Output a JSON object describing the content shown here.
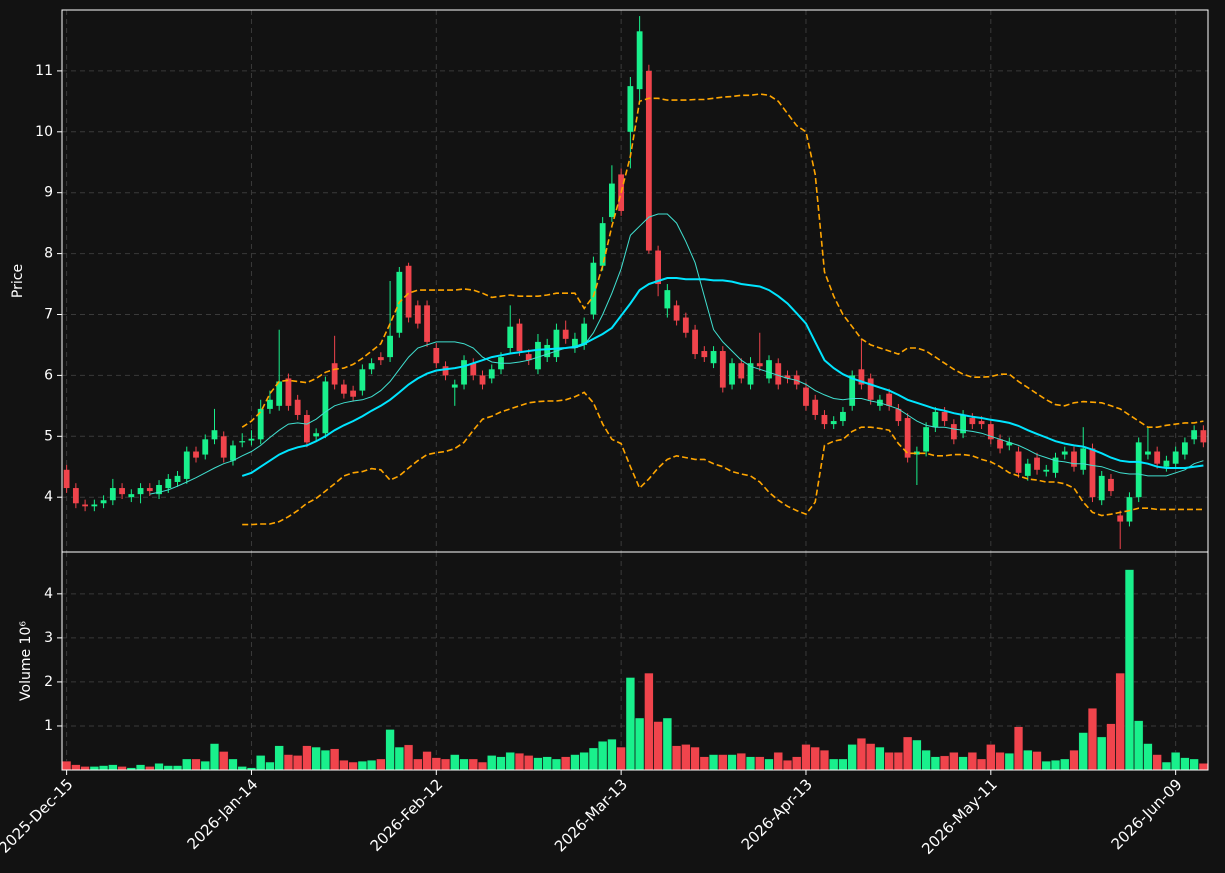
{
  "chart_data": [
    {
      "type": "candlestick",
      "ylabel": "Price",
      "ylim": [
        3.1,
        12.0
      ],
      "yticks": [
        4,
        5,
        6,
        7,
        8,
        9,
        10,
        11
      ],
      "grid": true,
      "up_color": "#19f08c",
      "down_color": "#f0444c",
      "open": [
        4.45,
        4.15,
        3.88,
        3.85,
        3.9,
        3.95,
        4.15,
        4.0,
        4.05,
        4.15,
        4.05,
        4.15,
        4.25,
        4.3,
        4.75,
        4.7,
        4.95,
        5.0,
        4.6,
        4.9,
        4.93,
        4.95,
        5.45,
        5.5,
        5.95,
        5.6,
        5.35,
        5.0,
        5.05,
        6.2,
        5.85,
        5.75,
        5.75,
        6.1,
        6.3,
        6.3,
        6.7,
        7.8,
        7.15,
        7.15,
        6.45,
        6.15,
        5.8,
        5.85,
        6.2,
        6.0,
        5.95,
        6.1,
        6.45,
        6.85,
        6.35,
        6.1,
        6.3,
        6.3,
        6.75,
        6.45,
        6.5,
        7.0,
        7.8,
        8.6,
        9.3,
        10.0,
        10.7,
        11.0,
        8.05,
        7.1,
        7.15,
        6.95,
        6.75,
        6.4,
        6.2,
        6.4,
        5.85,
        6.2,
        5.85,
        6.2,
        5.95,
        6.2,
        6.0,
        6.0,
        5.8,
        5.6,
        5.35,
        5.2,
        5.25,
        5.5,
        6.1,
        5.95,
        5.5,
        5.7,
        5.45,
        5.3,
        4.7,
        4.75,
        5.15,
        5.4,
        5.2,
        5.05,
        5.3,
        5.25,
        5.2,
        4.95,
        4.85,
        4.75,
        4.35,
        4.65,
        4.42,
        4.4,
        4.7,
        4.75,
        4.45,
        4.8,
        3.95,
        4.3,
        3.7,
        3.6,
        4.0,
        4.7,
        4.75,
        4.5,
        4.55,
        4.7,
        4.95,
        5.1
      ],
      "high": [
        4.53,
        4.23,
        3.96,
        3.96,
        4.03,
        4.3,
        4.23,
        4.13,
        4.23,
        4.23,
        4.28,
        4.38,
        4.43,
        4.83,
        4.83,
        5.03,
        5.45,
        5.08,
        4.93,
        5.05,
        5.1,
        5.6,
        5.75,
        6.75,
        6.03,
        5.68,
        5.43,
        5.13,
        5.98,
        6.65,
        5.93,
        5.83,
        6.18,
        6.28,
        6.38,
        7.55,
        7.78,
        7.85,
        7.23,
        7.23,
        6.53,
        6.23,
        5.93,
        6.33,
        6.28,
        6.08,
        6.18,
        6.38,
        7.15,
        6.93,
        6.43,
        6.68,
        6.6,
        6.85,
        6.9,
        6.7,
        6.95,
        7.95,
        8.6,
        9.45,
        9.4,
        10.9,
        11.9,
        11.1,
        8.13,
        7.5,
        7.23,
        7.03,
        6.83,
        6.48,
        6.48,
        6.48,
        6.28,
        6.28,
        6.3,
        6.7,
        6.33,
        6.28,
        6.08,
        6.08,
        5.88,
        5.68,
        5.43,
        5.33,
        5.48,
        6.08,
        6.6,
        6.03,
        5.68,
        5.78,
        5.53,
        5.38,
        4.83,
        5.23,
        5.48,
        5.48,
        5.28,
        5.43,
        5.38,
        5.33,
        5.28,
        5.03,
        4.98,
        4.83,
        4.63,
        4.73,
        4.53,
        4.73,
        4.83,
        4.83,
        5.15,
        4.88,
        4.43,
        4.38,
        3.78,
        4.08,
        4.98,
        5.15,
        4.83,
        4.68,
        4.83,
        4.98,
        5.18,
        5.18
      ],
      "low": [
        4.07,
        3.82,
        3.77,
        3.77,
        3.82,
        3.87,
        3.97,
        3.92,
        3.9,
        4.02,
        3.97,
        4.07,
        4.17,
        4.22,
        4.57,
        4.62,
        4.87,
        4.57,
        4.52,
        4.82,
        4.85,
        4.87,
        5.37,
        5.42,
        5.42,
        5.27,
        4.82,
        4.92,
        4.97,
        5.77,
        5.62,
        5.57,
        5.67,
        6.02,
        6.17,
        6.22,
        6.62,
        6.87,
        6.77,
        6.47,
        6.12,
        5.92,
        5.5,
        5.77,
        5.92,
        5.77,
        5.87,
        6.02,
        6.37,
        6.32,
        6.17,
        6.02,
        6.22,
        6.22,
        6.52,
        6.37,
        6.42,
        6.92,
        7.72,
        8.52,
        8.62,
        9.4,
        10.5,
        8.0,
        7.3,
        6.95,
        6.82,
        6.62,
        6.27,
        6.22,
        6.12,
        5.72,
        5.77,
        5.87,
        5.77,
        6.07,
        5.87,
        5.77,
        5.87,
        5.77,
        5.42,
        5.27,
        5.12,
        5.12,
        5.17,
        5.42,
        5.77,
        5.52,
        5.42,
        5.42,
        5.17,
        4.57,
        4.2,
        4.67,
        5.07,
        5.17,
        4.87,
        4.97,
        5.12,
        5.12,
        4.87,
        4.72,
        4.77,
        4.32,
        4.27,
        4.37,
        4.34,
        4.32,
        4.62,
        4.42,
        4.37,
        3.92,
        3.87,
        4.02,
        3.15,
        3.52,
        3.92,
        4.62,
        4.47,
        4.42,
        4.47,
        4.62,
        4.87,
        4.82
      ],
      "close": [
        4.15,
        3.9,
        3.85,
        3.88,
        3.95,
        4.15,
        4.05,
        4.05,
        4.15,
        4.1,
        4.2,
        4.3,
        4.35,
        4.75,
        4.65,
        4.95,
        5.1,
        4.65,
        4.85,
        4.92,
        4.96,
        5.45,
        5.6,
        5.9,
        5.5,
        5.35,
        4.9,
        5.05,
        5.9,
        5.85,
        5.7,
        5.65,
        6.1,
        6.2,
        6.25,
        6.65,
        7.7,
        6.95,
        6.85,
        6.55,
        6.2,
        6.0,
        5.85,
        6.25,
        6.0,
        5.85,
        6.1,
        6.3,
        6.8,
        6.4,
        6.25,
        6.55,
        6.5,
        6.75,
        6.6,
        6.6,
        6.85,
        7.85,
        8.5,
        9.15,
        8.7,
        10.75,
        11.65,
        8.05,
        7.5,
        7.4,
        6.9,
        6.7,
        6.35,
        6.3,
        6.4,
        5.8,
        6.2,
        5.95,
        6.2,
        6.15,
        6.25,
        5.85,
        5.95,
        5.85,
        5.5,
        5.35,
        5.2,
        5.25,
        5.4,
        6.0,
        5.85,
        5.6,
        5.6,
        5.5,
        5.25,
        4.65,
        4.75,
        5.15,
        5.4,
        5.25,
        4.95,
        5.35,
        5.2,
        5.2,
        4.95,
        4.8,
        4.9,
        4.4,
        4.55,
        4.45,
        4.45,
        4.65,
        4.75,
        4.5,
        4.8,
        4.0,
        4.35,
        4.1,
        3.6,
        4.0,
        4.9,
        4.75,
        4.55,
        4.6,
        4.75,
        4.9,
        5.1,
        4.9
      ],
      "lines": [
        {
          "color": "#40e0d0",
          "width": 1,
          "dash": false,
          "values": [
            null,
            null,
            null,
            null,
            null,
            null,
            null,
            null,
            null,
            4.05,
            4.08,
            4.12,
            4.18,
            4.25,
            4.32,
            4.4,
            4.48,
            4.55,
            4.6,
            4.68,
            4.75,
            4.85,
            4.98,
            5.1,
            5.2,
            5.22,
            5.2,
            5.28,
            5.4,
            5.5,
            5.55,
            5.58,
            5.6,
            5.65,
            5.75,
            5.9,
            6.1,
            6.3,
            6.45,
            6.5,
            6.55,
            6.55,
            6.55,
            6.52,
            6.45,
            6.3,
            6.22,
            6.2,
            6.2,
            6.22,
            6.25,
            6.3,
            6.35,
            6.4,
            6.45,
            6.45,
            6.5,
            6.7,
            7.0,
            7.35,
            7.75,
            8.3,
            8.45,
            8.6,
            8.65,
            8.65,
            8.5,
            8.2,
            7.85,
            7.3,
            6.75,
            6.55,
            6.4,
            6.25,
            6.15,
            6.1,
            6.05,
            6.0,
            5.95,
            5.92,
            5.85,
            5.75,
            5.68,
            5.62,
            5.6,
            5.62,
            5.62,
            5.58,
            5.55,
            5.5,
            5.45,
            5.35,
            5.25,
            5.18,
            5.15,
            5.15,
            5.12,
            5.1,
            5.08,
            5.05,
            5.0,
            4.95,
            4.9,
            4.85,
            4.78,
            4.7,
            4.65,
            4.6,
            4.58,
            4.55,
            4.55,
            4.52,
            4.5,
            4.45,
            4.4,
            4.38,
            4.38,
            4.35,
            4.35,
            4.35,
            4.4,
            4.45,
            4.55,
            4.6
          ]
        },
        {
          "color": "#00e5ff",
          "width": 2,
          "dash": false,
          "values": [
            null,
            null,
            null,
            null,
            null,
            null,
            null,
            null,
            null,
            null,
            null,
            null,
            null,
            null,
            null,
            null,
            null,
            null,
            null,
            4.35,
            4.4,
            4.5,
            4.6,
            4.7,
            4.77,
            4.82,
            4.85,
            4.92,
            5.0,
            5.1,
            5.18,
            5.25,
            5.33,
            5.42,
            5.5,
            5.6,
            5.72,
            5.85,
            5.95,
            6.03,
            6.08,
            6.1,
            6.12,
            6.15,
            6.2,
            6.25,
            6.3,
            6.33,
            6.36,
            6.38,
            6.4,
            6.42,
            6.43,
            6.44,
            6.45,
            6.47,
            6.52,
            6.6,
            6.68,
            6.78,
            6.98,
            7.18,
            7.4,
            7.5,
            7.55,
            7.6,
            7.6,
            7.58,
            7.58,
            7.58,
            7.56,
            7.56,
            7.54,
            7.5,
            7.48,
            7.46,
            7.4,
            7.3,
            7.18,
            7.02,
            6.85,
            6.55,
            6.25,
            6.12,
            6.02,
            5.95,
            5.9,
            5.85,
            5.8,
            5.75,
            5.68,
            5.6,
            5.55,
            5.5,
            5.45,
            5.42,
            5.38,
            5.35,
            5.32,
            5.3,
            5.27,
            5.25,
            5.22,
            5.17,
            5.1,
            5.04,
            4.98,
            4.92,
            4.88,
            4.85,
            4.83,
            4.78,
            4.72,
            4.65,
            4.6,
            4.58,
            4.58,
            4.55,
            4.5,
            4.48,
            4.48,
            4.48,
            4.5,
            4.52
          ]
        },
        {
          "color": "#ffa500",
          "width": 1.6,
          "dash": true,
          "values": [
            null,
            null,
            null,
            null,
            null,
            null,
            null,
            null,
            null,
            null,
            null,
            null,
            null,
            null,
            null,
            null,
            null,
            null,
            null,
            5.15,
            5.25,
            5.4,
            5.7,
            5.9,
            5.92,
            5.9,
            5.88,
            5.95,
            6.05,
            6.1,
            6.12,
            6.18,
            6.28,
            6.4,
            6.52,
            6.85,
            7.2,
            7.35,
            7.4,
            7.4,
            7.4,
            7.4,
            7.4,
            7.42,
            7.4,
            7.35,
            7.28,
            7.3,
            7.32,
            7.3,
            7.3,
            7.3,
            7.32,
            7.35,
            7.35,
            7.35,
            7.1,
            7.3,
            7.8,
            8.45,
            9.0,
            9.6,
            10.5,
            10.55,
            10.55,
            10.52,
            10.52,
            10.52,
            10.53,
            10.53,
            10.55,
            10.57,
            10.58,
            10.6,
            10.6,
            10.62,
            10.6,
            10.5,
            10.3,
            10.1,
            10.0,
            9.3,
            7.7,
            7.3,
            7.0,
            6.8,
            6.6,
            6.5,
            6.45,
            6.4,
            6.35,
            6.45,
            6.45,
            6.4,
            6.3,
            6.2,
            6.1,
            6.02,
            5.97,
            5.97,
            5.98,
            6.02,
            6.02,
            5.9,
            5.8,
            5.7,
            5.6,
            5.52,
            5.5,
            5.55,
            5.57,
            5.56,
            5.55,
            5.5,
            5.45,
            5.35,
            5.25,
            5.15,
            5.15,
            5.18,
            5.2,
            5.22,
            5.22,
            5.25
          ]
        },
        {
          "color": "#ffa500",
          "width": 1.6,
          "dash": true,
          "values": [
            null,
            null,
            null,
            null,
            null,
            null,
            null,
            null,
            null,
            null,
            null,
            null,
            null,
            null,
            null,
            null,
            null,
            null,
            null,
            3.55,
            3.55,
            3.56,
            3.56,
            3.6,
            3.68,
            3.78,
            3.9,
            3.98,
            4.1,
            4.22,
            4.35,
            4.4,
            4.42,
            4.47,
            4.45,
            4.28,
            4.35,
            4.48,
            4.6,
            4.7,
            4.73,
            4.75,
            4.8,
            4.9,
            5.1,
            5.28,
            5.33,
            5.4,
            5.45,
            5.5,
            5.55,
            5.57,
            5.58,
            5.58,
            5.6,
            5.65,
            5.72,
            5.55,
            5.2,
            4.95,
            4.88,
            4.5,
            4.15,
            4.3,
            4.48,
            4.62,
            4.68,
            4.65,
            4.62,
            4.62,
            4.55,
            4.5,
            4.42,
            4.38,
            4.35,
            4.25,
            4.08,
            3.95,
            3.85,
            3.78,
            3.72,
            3.92,
            4.85,
            4.92,
            4.95,
            5.08,
            5.15,
            5.15,
            5.13,
            5.1,
            4.88,
            4.72,
            4.72,
            4.72,
            4.68,
            4.68,
            4.7,
            4.7,
            4.68,
            4.62,
            4.58,
            4.5,
            4.4,
            4.35,
            4.3,
            4.28,
            4.25,
            4.25,
            4.22,
            4.15,
            3.92,
            3.75,
            3.7,
            3.72,
            3.75,
            3.78,
            3.82,
            3.82,
            3.8,
            3.8,
            3.8,
            3.8,
            3.8,
            3.8
          ]
        }
      ]
    },
    {
      "type": "bar",
      "ylabel": "Volume  10⁶",
      "ylim": [
        0,
        4.95
      ],
      "yticks": [
        1,
        2,
        3,
        4
      ],
      "grid": true,
      "values": [
        0.2,
        0.12,
        0.08,
        0.08,
        0.1,
        0.12,
        0.08,
        0.05,
        0.12,
        0.08,
        0.15,
        0.1,
        0.1,
        0.25,
        0.25,
        0.2,
        0.6,
        0.42,
        0.25,
        0.08,
        0.05,
        0.33,
        0.18,
        0.55,
        0.35,
        0.33,
        0.55,
        0.52,
        0.45,
        0.48,
        0.22,
        0.18,
        0.2,
        0.22,
        0.25,
        0.92,
        0.52,
        0.57,
        0.25,
        0.42,
        0.28,
        0.25,
        0.35,
        0.25,
        0.25,
        0.18,
        0.33,
        0.3,
        0.4,
        0.38,
        0.33,
        0.28,
        0.3,
        0.25,
        0.3,
        0.35,
        0.4,
        0.5,
        0.65,
        0.7,
        0.52,
        2.1,
        1.18,
        2.2,
        1.1,
        1.18,
        0.55,
        0.58,
        0.52,
        0.3,
        0.35,
        0.35,
        0.35,
        0.38,
        0.3,
        0.3,
        0.25,
        0.4,
        0.22,
        0.3,
        0.58,
        0.52,
        0.45,
        0.25,
        0.25,
        0.58,
        0.72,
        0.6,
        0.52,
        0.4,
        0.4,
        0.75,
        0.68,
        0.45,
        0.3,
        0.32,
        0.4,
        0.3,
        0.4,
        0.25,
        0.58,
        0.4,
        0.38,
        0.98,
        0.45,
        0.42,
        0.2,
        0.22,
        0.25,
        0.45,
        0.85,
        1.4,
        0.75,
        1.05,
        2.2,
        4.55,
        1.12,
        0.6,
        0.35,
        0.18,
        0.4,
        0.28,
        0.25,
        0.15
      ],
      "xticks": [
        {
          "value": 0,
          "label": "2025-Dec-15"
        },
        {
          "value": 20,
          "label": "2026-Jan-14"
        },
        {
          "value": 40,
          "label": "2026-Feb-12"
        },
        {
          "value": 60,
          "label": "2026-Mar-13"
        },
        {
          "value": 80,
          "label": "2026-Apr-13"
        },
        {
          "value": 100,
          "label": "2026-May-11"
        },
        {
          "value": 120,
          "label": "2026-Jun-09"
        }
      ]
    }
  ]
}
